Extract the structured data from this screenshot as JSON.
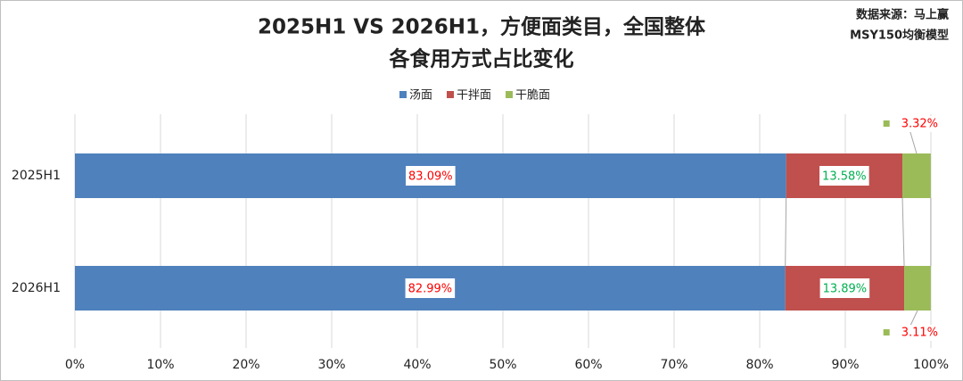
{
  "chart_data": {
    "type": "stacked-bar-horizontal",
    "title": [
      "2025H1 VS 2026H1，方便面类目，全国整体",
      "各食用方式占比变化"
    ],
    "source": [
      "数据来源：马上赢",
      "MSY150均衡模型"
    ],
    "categories": [
      "2025H1",
      "2026H1"
    ],
    "series": [
      {
        "name": "汤面",
        "color": "#4f81bd",
        "values": [
          83.09,
          82.99
        ],
        "value_labels": [
          "83.09%",
          "82.99%"
        ]
      },
      {
        "name": "干拌面",
        "color": "#c0504d",
        "values": [
          13.58,
          13.89
        ],
        "value_labels": [
          "13.58%",
          "13.89%"
        ]
      },
      {
        "name": "干脆面",
        "color": "#9bbb59",
        "values": [
          3.32,
          3.11
        ],
        "value_labels": [
          "3.32%",
          "3.11%"
        ]
      }
    ],
    "xlim": [
      0,
      100
    ],
    "xticks": [
      {
        "value": 0,
        "label": "0%"
      },
      {
        "value": 10,
        "label": "10%"
      },
      {
        "value": 20,
        "label": "20%"
      },
      {
        "value": 30,
        "label": "30%"
      },
      {
        "value": 40,
        "label": "40%"
      },
      {
        "value": 50,
        "label": "50%"
      },
      {
        "value": 60,
        "label": "60%"
      },
      {
        "value": 70,
        "label": "70%"
      },
      {
        "value": 80,
        "label": "80%"
      },
      {
        "value": 90,
        "label": "90%"
      },
      {
        "value": 100,
        "label": "100%"
      }
    ],
    "grid": true,
    "legend": "top"
  }
}
